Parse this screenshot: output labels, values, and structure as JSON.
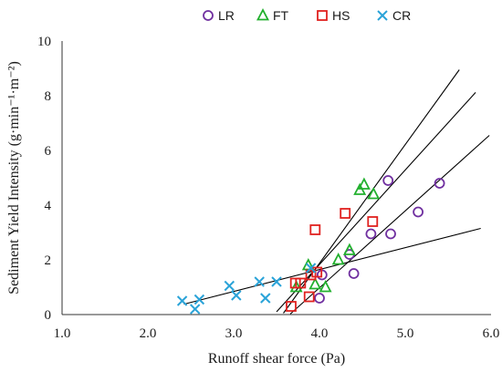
{
  "chart_data": {
    "type": "scatter",
    "title": "",
    "xlabel": "Runoff shear force (Pa)",
    "ylabel": "Sediment Yield Intensity (g·min⁻¹·m⁻²)",
    "xlim": [
      1.0,
      6.0
    ],
    "ylim": [
      0,
      10
    ],
    "xticks": [
      1.0,
      2.0,
      3.0,
      4.0,
      5.0,
      6.0
    ],
    "xtick_labels": [
      "1.0",
      "2.0",
      "3.0",
      "4.0",
      "5.0",
      "6.0"
    ],
    "yticks": [
      0,
      2,
      4,
      6,
      8,
      10
    ],
    "ytick_labels": [
      "0",
      "2",
      "4",
      "6",
      "8",
      "10"
    ],
    "grid": false,
    "legend_position": "top",
    "series": [
      {
        "name": "LR",
        "marker": "circle",
        "color": "#7030a0",
        "points": [
          [
            4.0,
            0.6
          ],
          [
            4.03,
            1.45
          ],
          [
            4.35,
            2.2
          ],
          [
            4.4,
            1.5
          ],
          [
            4.6,
            2.95
          ],
          [
            4.8,
            4.9
          ],
          [
            4.83,
            2.95
          ],
          [
            5.15,
            3.75
          ],
          [
            5.4,
            4.8
          ]
        ]
      },
      {
        "name": "FT",
        "marker": "triangle",
        "color": "#22b02e",
        "points": [
          [
            3.73,
            1.0
          ],
          [
            3.87,
            1.8
          ],
          [
            3.95,
            1.1
          ],
          [
            4.07,
            1.0
          ],
          [
            4.22,
            2.0
          ],
          [
            4.35,
            2.35
          ],
          [
            4.47,
            4.55
          ],
          [
            4.52,
            4.75
          ],
          [
            4.63,
            4.4
          ]
        ]
      },
      {
        "name": "HS",
        "marker": "square",
        "color": "#e0211f",
        "points": [
          [
            3.67,
            0.3
          ],
          [
            3.72,
            1.15
          ],
          [
            3.78,
            1.15
          ],
          [
            3.88,
            0.65
          ],
          [
            3.9,
            1.45
          ],
          [
            3.95,
            3.1
          ],
          [
            3.97,
            1.55
          ],
          [
            4.3,
            3.7
          ],
          [
            4.62,
            3.4
          ]
        ]
      },
      {
        "name": "CR",
        "marker": "x",
        "color": "#2aa3d8",
        "points": [
          [
            2.4,
            0.5
          ],
          [
            2.55,
            0.2
          ],
          [
            2.6,
            0.55
          ],
          [
            2.95,
            1.05
          ],
          [
            3.03,
            0.7
          ],
          [
            3.3,
            1.2
          ],
          [
            3.37,
            0.6
          ],
          [
            3.5,
            1.2
          ],
          [
            3.9,
            1.7
          ]
        ]
      }
    ],
    "trendlines": [
      {
        "x": [
          2.42,
          5.88
        ],
        "y": [
          0.38,
          3.15
        ]
      },
      {
        "x": [
          3.66,
          5.98
        ],
        "y": [
          0.02,
          6.55
        ]
      },
      {
        "x": [
          3.5,
          5.82
        ],
        "y": [
          0.1,
          8.12
        ]
      },
      {
        "x": [
          3.58,
          5.63
        ],
        "y": [
          0.05,
          8.95
        ]
      }
    ]
  }
}
